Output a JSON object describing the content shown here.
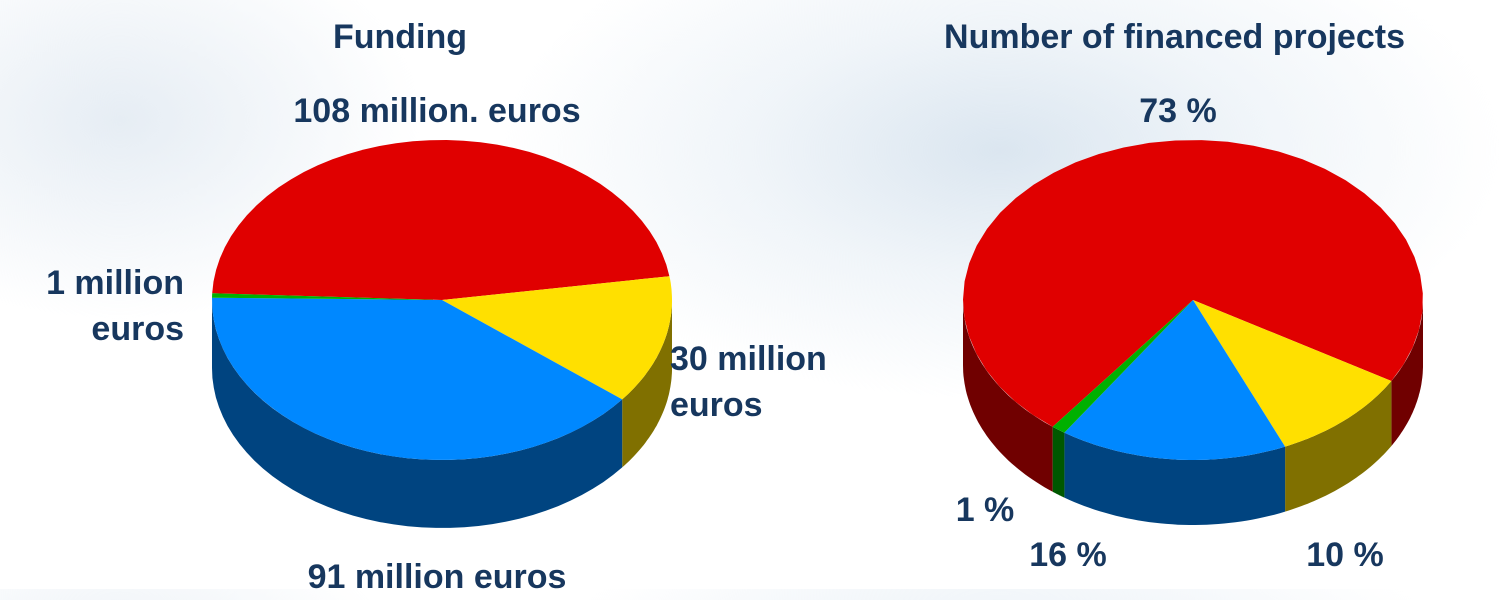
{
  "chart_data": [
    {
      "type": "pie",
      "title": "Funding",
      "values": [
        108,
        30,
        91,
        1
      ],
      "value_labels": [
        "108 million. euros",
        "30 million euros",
        "91 million euros",
        "1 million euros"
      ],
      "colors": [
        "#e00000",
        "#ffe000",
        "#0088ff",
        "#00b000"
      ]
    },
    {
      "type": "pie",
      "title": "Number of financed projects",
      "values": [
        73,
        10,
        16,
        1
      ],
      "value_labels": [
        "73 %",
        "10 %",
        "16 %",
        "1 %"
      ],
      "colors": [
        "#e00000",
        "#ffe000",
        "#0088ff",
        "#00b000"
      ]
    }
  ]
}
